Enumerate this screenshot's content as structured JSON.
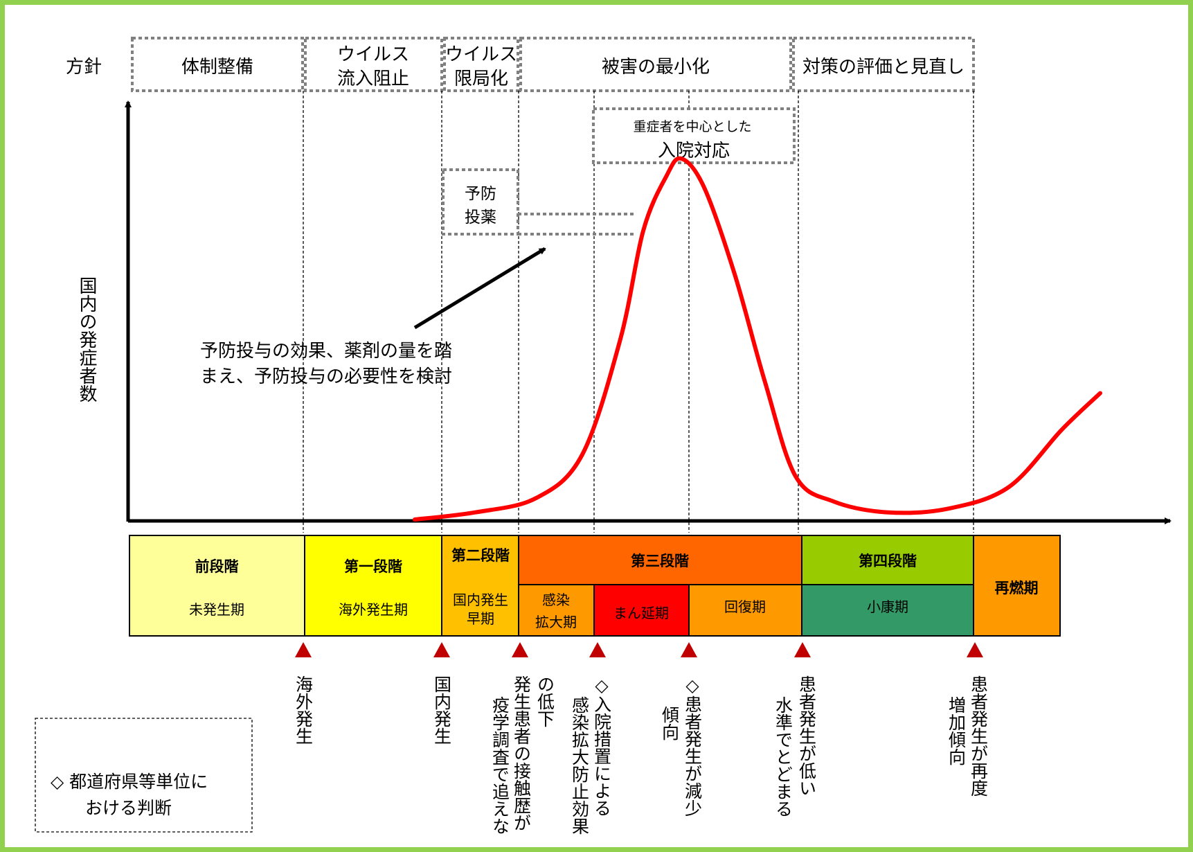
{
  "policy_heading": "方針",
  "policies": [
    {
      "lines": [
        "体制整備"
      ]
    },
    {
      "lines": [
        "ウイルス",
        "流入阻止"
      ]
    },
    {
      "lines": [
        "ウイルス",
        "限局化"
      ]
    },
    {
      "lines": [
        "被害の最小化"
      ]
    },
    {
      "lines": [
        "対策の評価と見直し"
      ]
    }
  ],
  "measure_boxes": {
    "hospital": {
      "lines": [
        "重症者を中心とした",
        "入院対応"
      ]
    },
    "prophylaxis": {
      "lines": [
        "予防",
        "投薬"
      ]
    }
  },
  "y_axis_label": "国内の発症者数",
  "note": {
    "lines": [
      "予防投与の効果、薬剤の量を踏",
      "まえ、予防投与の必要性を検討"
    ]
  },
  "stages": [
    {
      "name": "前段階",
      "period": [
        "未発生期"
      ],
      "color": "#ffff99"
    },
    {
      "name": "第一段階",
      "period": [
        "海外発生期"
      ],
      "color": "#ffff00"
    },
    {
      "name": "第二段階",
      "period": [
        "国内発生",
        "早期"
      ],
      "color": "#ffc000"
    },
    {
      "name": "第三段階",
      "color": "#ff6600"
    },
    {
      "name": "第四段階",
      "color": "#99cc00"
    },
    {
      "name": "再燃期",
      "color": "#ff9900"
    }
  ],
  "stage3_periods": [
    {
      "lines": [
        "感染",
        "拡大期"
      ],
      "color": "#ff9900"
    },
    {
      "lines": [
        "まん延期"
      ],
      "color": "#ff0000"
    },
    {
      "lines": [
        "回復期"
      ],
      "color": "#ff9900"
    }
  ],
  "stage4_period": {
    "lines": [
      "小康期"
    ],
    "color": "#339966"
  },
  "events": [
    {
      "columns": [
        "海外発生"
      ]
    },
    {
      "columns": [
        "国内発生"
      ]
    },
    {
      "columns": [
        "発生患者の接触歴が",
        "疫学調査で追えな",
        "の低下"
      ]
    },
    {
      "columns": [
        "◇入院措置による",
        "感染拡大防止効果"
      ]
    },
    {
      "columns": [
        "◇患者発生が減少",
        "傾向"
      ]
    },
    {
      "columns": [
        "患者発生が低い",
        "水準でとどまる"
      ]
    },
    {
      "columns": [
        "患者発生が再度",
        "増加傾向"
      ]
    }
  ],
  "legend": {
    "lines": [
      "◇ 都道府県等単位に",
      "おける判断"
    ]
  },
  "colors": {
    "frame": "#92d050",
    "curve": "#ff0000",
    "marker": "#c00000",
    "dotted_box": "#808080"
  },
  "curve_data": {
    "description_free": true,
    "points": [
      [
        0.0,
        0.0
      ],
      [
        0.08,
        0.02
      ],
      [
        0.16,
        0.06
      ],
      [
        0.22,
        0.18
      ],
      [
        0.27,
        0.5
      ],
      [
        0.3,
        0.8
      ],
      [
        0.33,
        0.95
      ],
      [
        0.35,
        1.0
      ],
      [
        0.38,
        0.92
      ],
      [
        0.42,
        0.68
      ],
      [
        0.46,
        0.38
      ],
      [
        0.5,
        0.12
      ],
      [
        0.55,
        0.05
      ],
      [
        0.62,
        0.02
      ],
      [
        0.7,
        0.03
      ],
      [
        0.78,
        0.09
      ],
      [
        0.85,
        0.25
      ],
      [
        0.9,
        0.35
      ]
    ]
  }
}
